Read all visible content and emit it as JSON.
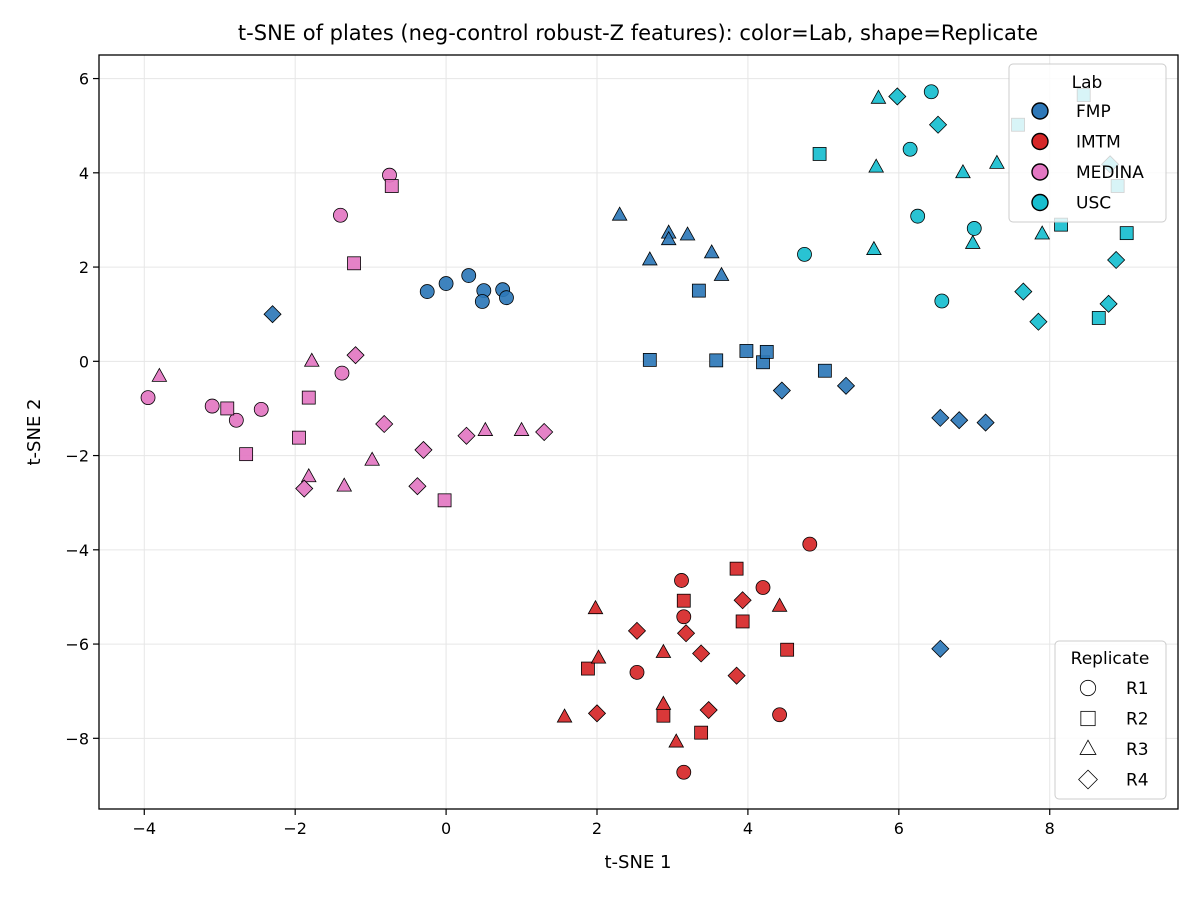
{
  "chart_data": {
    "type": "scatter",
    "title": "t-SNE of plates (neg-control robust-Z features): color=Lab, shape=Replicate",
    "xlabel": "t-SNE 1",
    "ylabel": "t-SNE 2",
    "xlim": [
      -4.6,
      9.7
    ],
    "ylim": [
      -9.5,
      6.5
    ],
    "xticks": [
      -4,
      -2,
      0,
      2,
      4,
      6,
      8
    ],
    "xtick_labels": [
      "−4",
      "−2",
      "0",
      "2",
      "4",
      "6",
      "8"
    ],
    "yticks": [
      -8,
      -6,
      -4,
      -2,
      0,
      2,
      4,
      6
    ],
    "ytick_labels": [
      "−8",
      "−6",
      "−4",
      "−2",
      "0",
      "2",
      "4",
      "6"
    ],
    "grid": true,
    "colors": {
      "FMP": "#2e78b8",
      "IMTM": "#d62728",
      "MEDINA": "#e377c2",
      "USC": "#17becf"
    },
    "legend_lab": {
      "title": "Lab",
      "placement": "top-right",
      "entries": [
        "FMP",
        "IMTM",
        "MEDINA",
        "USC"
      ]
    },
    "legend_replicate": {
      "title": "Replicate",
      "placement": "bottom-right",
      "entries": [
        {
          "label": "R1",
          "shape": "circle"
        },
        {
          "label": "R2",
          "shape": "square"
        },
        {
          "label": "R3",
          "shape": "triangle"
        },
        {
          "label": "R4",
          "shape": "diamond"
        }
      ]
    },
    "series": [
      {
        "lab": "FMP",
        "replicate": "R1",
        "points": [
          [
            -0.25,
            1.48
          ],
          [
            0,
            1.65
          ],
          [
            0.3,
            1.82
          ],
          [
            0.5,
            1.5
          ],
          [
            0.48,
            1.27
          ],
          [
            0.75,
            1.52
          ],
          [
            0.8,
            1.35
          ]
        ]
      },
      {
        "lab": "FMP",
        "replicate": "R2",
        "points": [
          [
            2.7,
            0.03
          ],
          [
            3.35,
            1.5
          ],
          [
            3.58,
            0.02
          ],
          [
            3.98,
            0.22
          ],
          [
            4.2,
            -0.02
          ],
          [
            4.25,
            0.2
          ],
          [
            5.02,
            -0.2
          ]
        ]
      },
      {
        "lab": "FMP",
        "replicate": "R3",
        "points": [
          [
            2.3,
            3.1
          ],
          [
            2.7,
            2.15
          ],
          [
            2.95,
            2.72
          ],
          [
            2.95,
            2.58
          ],
          [
            3.2,
            2.68
          ],
          [
            3.52,
            2.3
          ],
          [
            3.65,
            1.82
          ]
        ]
      },
      {
        "lab": "FMP",
        "replicate": "R4",
        "points": [
          [
            -2.3,
            1.0
          ],
          [
            4.45,
            -0.62
          ],
          [
            5.3,
            -0.52
          ],
          [
            6.55,
            -1.2
          ],
          [
            6.8,
            -1.25
          ],
          [
            7.15,
            -1.3
          ],
          [
            6.55,
            -6.1
          ]
        ]
      },
      {
        "lab": "IMTM",
        "replicate": "R1",
        "points": [
          [
            4.82,
            -3.88
          ],
          [
            3.12,
            -4.65
          ],
          [
            3.15,
            -5.42
          ],
          [
            4.2,
            -4.8
          ],
          [
            2.53,
            -6.6
          ],
          [
            4.42,
            -7.5
          ],
          [
            3.15,
            -8.72
          ]
        ]
      },
      {
        "lab": "IMTM",
        "replicate": "R2",
        "points": [
          [
            3.85,
            -4.4
          ],
          [
            3.15,
            -5.08
          ],
          [
            3.93,
            -5.52
          ],
          [
            4.52,
            -6.12
          ],
          [
            1.88,
            -6.52
          ],
          [
            2.88,
            -7.52
          ],
          [
            3.38,
            -7.88
          ]
        ]
      },
      {
        "lab": "IMTM",
        "replicate": "R3",
        "points": [
          [
            1.98,
            -5.25
          ],
          [
            4.42,
            -5.2
          ],
          [
            2.02,
            -6.3
          ],
          [
            2.88,
            -6.18
          ],
          [
            2.88,
            -7.28
          ],
          [
            1.57,
            -7.55
          ],
          [
            3.05,
            -8.08
          ]
        ]
      },
      {
        "lab": "IMTM",
        "replicate": "R4",
        "points": [
          [
            3.93,
            -5.07
          ],
          [
            2.53,
            -5.72
          ],
          [
            3.18,
            -5.77
          ],
          [
            3.38,
            -6.2
          ],
          [
            3.85,
            -6.67
          ],
          [
            2.0,
            -7.47
          ],
          [
            3.48,
            -7.4
          ]
        ]
      },
      {
        "lab": "MEDINA",
        "replicate": "R1",
        "points": [
          [
            -0.75,
            3.95
          ],
          [
            -1.4,
            3.1
          ],
          [
            -1.38,
            -0.25
          ],
          [
            -3.95,
            -0.77
          ],
          [
            -3.1,
            -0.95
          ],
          [
            -2.78,
            -1.25
          ],
          [
            -2.45,
            -1.02
          ]
        ]
      },
      {
        "lab": "MEDINA",
        "replicate": "R2",
        "points": [
          [
            -0.72,
            3.72
          ],
          [
            -1.22,
            2.08
          ],
          [
            -1.82,
            -0.77
          ],
          [
            -2.9,
            -1.0
          ],
          [
            -1.95,
            -1.62
          ],
          [
            -2.65,
            -1.97
          ],
          [
            -0.02,
            -2.95
          ]
        ]
      },
      {
        "lab": "MEDINA",
        "replicate": "R3",
        "points": [
          [
            -3.8,
            -0.32
          ],
          [
            -1.78,
            0.0
          ],
          [
            -1.82,
            -2.45
          ],
          [
            -0.98,
            -2.1
          ],
          [
            -1.35,
            -2.65
          ],
          [
            0.52,
            -1.47
          ],
          [
            1.0,
            -1.47
          ]
        ]
      },
      {
        "lab": "MEDINA",
        "replicate": "R4",
        "points": [
          [
            -1.2,
            0.13
          ],
          [
            -0.82,
            -1.33
          ],
          [
            -0.3,
            -1.88
          ],
          [
            0.27,
            -1.58
          ],
          [
            1.3,
            -1.5
          ],
          [
            -1.88,
            -2.7
          ],
          [
            -0.38,
            -2.65
          ]
        ]
      },
      {
        "lab": "USC",
        "replicate": "R1",
        "points": [
          [
            6.43,
            5.72
          ],
          [
            6.15,
            4.5
          ],
          [
            6.25,
            3.08
          ],
          [
            7.0,
            2.82
          ],
          [
            4.75,
            2.27
          ],
          [
            6.57,
            1.28
          ]
        ]
      },
      {
        "lab": "USC",
        "replicate": "R2",
        "points": [
          [
            8.45,
            5.65
          ],
          [
            7.58,
            5.02
          ],
          [
            4.95,
            4.4
          ],
          [
            8.9,
            3.72
          ],
          [
            8.15,
            2.9
          ],
          [
            9.02,
            2.72
          ],
          [
            8.65,
            0.92
          ]
        ]
      },
      {
        "lab": "USC",
        "replicate": "R3",
        "points": [
          [
            5.73,
            5.58
          ],
          [
            5.7,
            4.12
          ],
          [
            6.85,
            4.0
          ],
          [
            7.3,
            4.2
          ],
          [
            6.98,
            2.5
          ],
          [
            5.67,
            2.37
          ],
          [
            7.9,
            2.7
          ]
        ]
      },
      {
        "lab": "USC",
        "replicate": "R4",
        "points": [
          [
            5.98,
            5.62
          ],
          [
            6.52,
            5.02
          ],
          [
            8.8,
            4.18
          ],
          [
            7.65,
            1.48
          ],
          [
            7.85,
            0.84
          ],
          [
            8.78,
            1.22
          ],
          [
            8.88,
            2.15
          ]
        ]
      }
    ]
  }
}
